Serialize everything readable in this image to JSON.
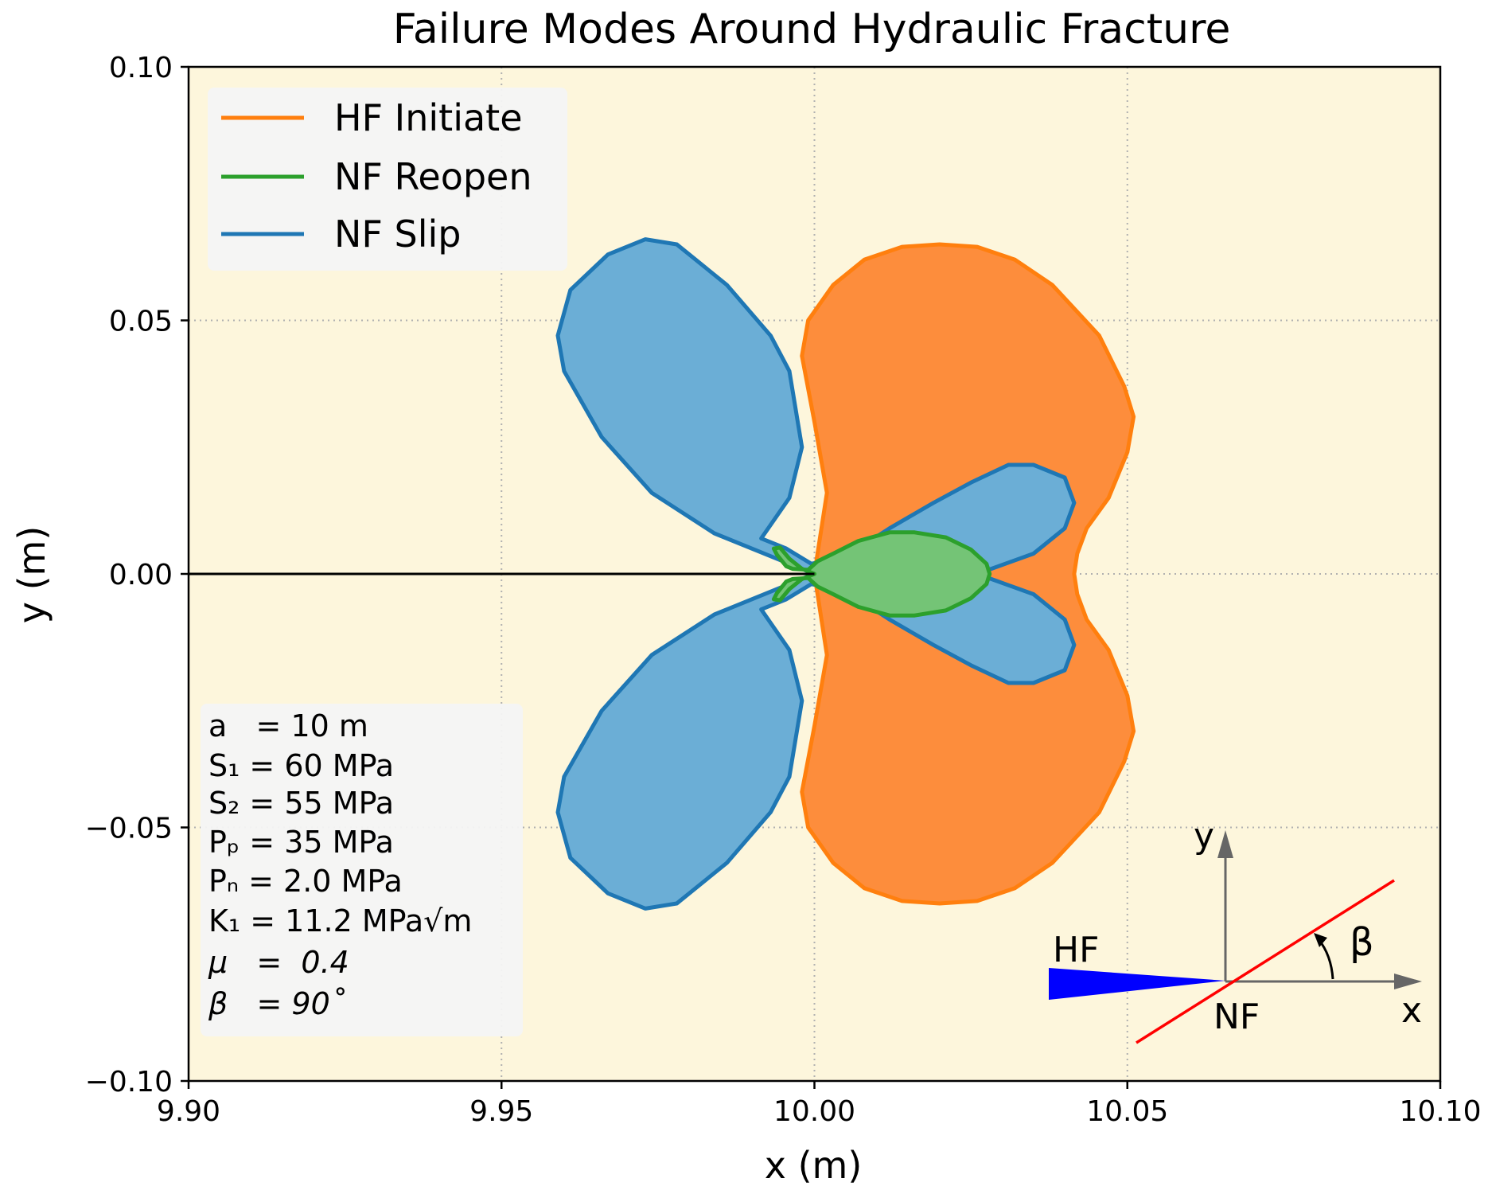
{
  "chart_data": {
    "type": "area",
    "title": "Failure Modes Around Hydraulic Fracture",
    "xlabel": "x (m)",
    "ylabel": "y (m)",
    "xlim": [
      9.9,
      10.1
    ],
    "ylim": [
      -0.1,
      0.1
    ],
    "xticks": [
      9.9,
      9.95,
      10.0,
      10.05,
      10.1
    ],
    "yticks": [
      0.1,
      0.05,
      0.0,
      -0.05,
      -0.1
    ],
    "xtick_labels": [
      "9.90",
      "9.95",
      "10.00",
      "10.05",
      "10.10"
    ],
    "ytick_labels": [
      "0.10",
      "0.05",
      "0.00",
      "−0.05",
      "−0.10"
    ],
    "grid": true,
    "legend_position": "top-left",
    "series": [
      {
        "name": "HF Initiate",
        "color": "#ff7f0e",
        "fill": "#fd8d3c",
        "points": [
          [
            10.0,
            0.0
          ],
          [
            10.0005,
            0.004
          ],
          [
            10.002,
            0.016
          ],
          [
            10.0,
            0.03
          ],
          [
            9.998,
            0.043
          ],
          [
            9.999,
            0.05
          ],
          [
            10.003,
            0.057
          ],
          [
            10.008,
            0.062
          ],
          [
            10.014,
            0.0645
          ],
          [
            10.02,
            0.065
          ],
          [
            10.026,
            0.0645
          ],
          [
            10.032,
            0.062
          ],
          [
            10.038,
            0.057
          ],
          [
            10.0455,
            0.047
          ],
          [
            10.0495,
            0.037
          ],
          [
            10.051,
            0.031
          ],
          [
            10.05,
            0.024
          ],
          [
            10.047,
            0.015
          ],
          [
            10.0435,
            0.009
          ],
          [
            10.042,
            0.004
          ],
          [
            10.0415,
            0.0
          ],
          [
            10.042,
            -0.004
          ],
          [
            10.0435,
            -0.009
          ],
          [
            10.047,
            -0.015
          ],
          [
            10.05,
            -0.024
          ],
          [
            10.051,
            -0.031
          ],
          [
            10.0495,
            -0.037
          ],
          [
            10.0455,
            -0.047
          ],
          [
            10.038,
            -0.057
          ],
          [
            10.032,
            -0.062
          ],
          [
            10.026,
            -0.0645
          ],
          [
            10.02,
            -0.065
          ],
          [
            10.014,
            -0.0645
          ],
          [
            10.008,
            -0.062
          ],
          [
            10.003,
            -0.057
          ],
          [
            9.999,
            -0.05
          ],
          [
            9.998,
            -0.043
          ],
          [
            10.0,
            -0.03
          ],
          [
            10.002,
            -0.016
          ],
          [
            10.0005,
            -0.004
          ],
          [
            10.0,
            0.0
          ]
        ]
      },
      {
        "name": "NF Slip",
        "color": "#1f77b4",
        "fill": "#6baed6",
        "points": [
          [
            10.0,
            0.0
          ],
          [
            9.994,
            0.003
          ],
          [
            9.984,
            0.008
          ],
          [
            9.974,
            0.016
          ],
          [
            9.966,
            0.027
          ],
          [
            9.96,
            0.04
          ],
          [
            9.959,
            0.047
          ],
          [
            9.961,
            0.056
          ],
          [
            9.967,
            0.063
          ],
          [
            9.973,
            0.066
          ],
          [
            9.978,
            0.065
          ],
          [
            9.986,
            0.057
          ],
          [
            9.993,
            0.047
          ],
          [
            9.996,
            0.04
          ],
          [
            9.998,
            0.025
          ],
          [
            9.996,
            0.015
          ],
          [
            9.9915,
            0.007
          ],
          [
            9.9955,
            0.005
          ],
          [
            9.9995,
            0.002
          ],
          [
            10.003,
            0.003
          ],
          [
            10.007,
            0.005
          ],
          [
            10.012,
            0.009
          ],
          [
            10.019,
            0.014
          ],
          [
            10.025,
            0.018
          ],
          [
            10.031,
            0.0215
          ],
          [
            10.035,
            0.0215
          ],
          [
            10.04,
            0.019
          ],
          [
            10.0415,
            0.014
          ],
          [
            10.04,
            0.009
          ],
          [
            10.035,
            0.004
          ],
          [
            10.026,
            0.0
          ],
          [
            10.035,
            -0.004
          ],
          [
            10.04,
            -0.009
          ],
          [
            10.0415,
            -0.014
          ],
          [
            10.04,
            -0.019
          ],
          [
            10.035,
            -0.0215
          ],
          [
            10.031,
            -0.0215
          ],
          [
            10.025,
            -0.018
          ],
          [
            10.019,
            -0.014
          ],
          [
            10.012,
            -0.009
          ],
          [
            10.007,
            -0.005
          ],
          [
            10.003,
            -0.003
          ],
          [
            9.9995,
            -0.002
          ],
          [
            9.9955,
            -0.005
          ],
          [
            9.9915,
            -0.007
          ],
          [
            9.996,
            -0.015
          ],
          [
            9.998,
            -0.025
          ],
          [
            9.996,
            -0.04
          ],
          [
            9.993,
            -0.047
          ],
          [
            9.986,
            -0.057
          ],
          [
            9.978,
            -0.065
          ],
          [
            9.973,
            -0.066
          ],
          [
            9.967,
            -0.063
          ],
          [
            9.961,
            -0.056
          ],
          [
            9.959,
            -0.047
          ],
          [
            9.96,
            -0.04
          ],
          [
            9.966,
            -0.027
          ],
          [
            9.974,
            -0.016
          ],
          [
            9.984,
            -0.008
          ],
          [
            9.994,
            -0.003
          ],
          [
            10.0,
            0.0
          ]
        ]
      },
      {
        "name": "NF Reopen",
        "color": "#2ca02c",
        "fill": "#74c476",
        "points": [
          [
            10.0,
            0.0
          ],
          [
            9.998,
            0.001
          ],
          [
            9.996,
            0.003
          ],
          [
            9.9945,
            0.0052
          ],
          [
            9.9935,
            0.005
          ],
          [
            9.994,
            0.0038
          ],
          [
            9.9955,
            0.0015
          ],
          [
            9.9965,
            0.001
          ],
          [
            9.999,
            0.0008
          ],
          [
            10.0005,
            0.0025
          ],
          [
            10.003,
            0.004
          ],
          [
            10.007,
            0.0065
          ],
          [
            10.012,
            0.0082
          ],
          [
            10.016,
            0.0082
          ],
          [
            10.021,
            0.0072
          ],
          [
            10.025,
            0.0048
          ],
          [
            10.0275,
            0.002
          ],
          [
            10.028,
            0.0
          ],
          [
            10.0275,
            -0.002
          ],
          [
            10.025,
            -0.0048
          ],
          [
            10.021,
            -0.0072
          ],
          [
            10.016,
            -0.0082
          ],
          [
            10.012,
            -0.0082
          ],
          [
            10.007,
            -0.0065
          ],
          [
            10.003,
            -0.004
          ],
          [
            10.0005,
            -0.0025
          ],
          [
            9.999,
            -0.0008
          ],
          [
            9.9965,
            -0.001
          ],
          [
            9.9955,
            -0.0015
          ],
          [
            9.994,
            -0.0038
          ],
          [
            9.9935,
            -0.005
          ],
          [
            9.9945,
            -0.0052
          ],
          [
            9.996,
            -0.003
          ],
          [
            9.998,
            -0.001
          ],
          [
            10.0,
            0.0
          ]
        ]
      }
    ],
    "hf_trace": {
      "x": [
        9.9,
        10.0
      ],
      "y": [
        0.0,
        0.0
      ]
    },
    "annotations": [
      "a   = 10 m",
      "S₁ = 60 MPa",
      "S₂ = 55 MPa",
      "Pₚ = 35 MPa",
      "Pₙ = 2.0 MPa",
      "K₁ = 11.2 MPa√m",
      "μ   =  0.4",
      "β   = 90˚"
    ],
    "inset": {
      "hf_label": "HF",
      "nf_label": "NF",
      "x_axis_label": "x",
      "y_axis_label": "y",
      "angle_label": "β",
      "hf_color": "#0000ff",
      "nf_color": "#ff0000",
      "axis_color": "#666666"
    },
    "colors": {
      "plot_background": "#fdf6dc",
      "legend_background": "#f4f4f4"
    }
  }
}
